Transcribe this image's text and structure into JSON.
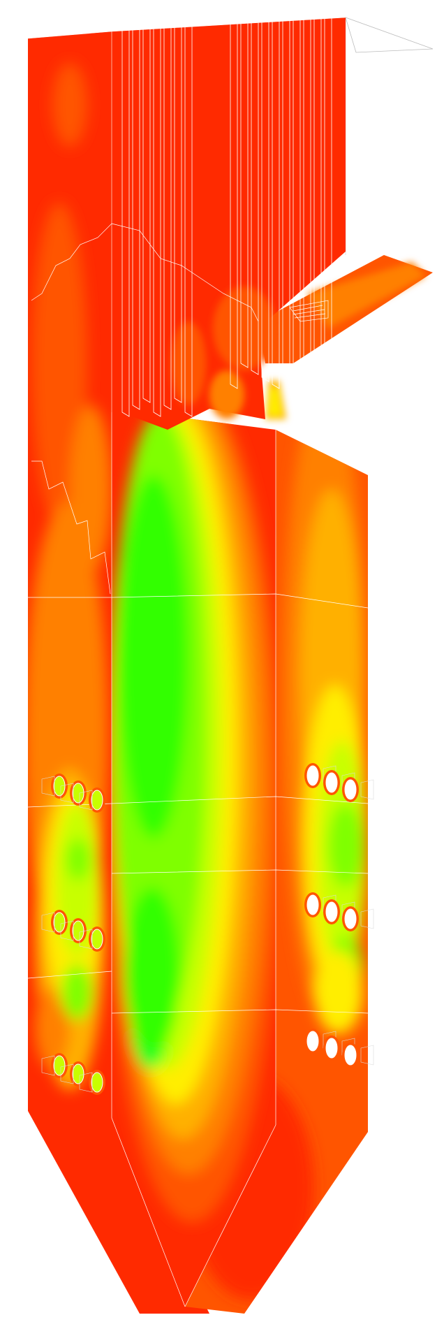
{
  "figure": {
    "subject": "boiler-furnace-temperature-contour",
    "legend": null,
    "labels": []
  },
  "colors": {
    "background": "#ffffff",
    "hot_red": "#ff1a00",
    "red": "#ff2a00",
    "orange_red": "#ff5500",
    "orange": "#ff8000",
    "yellow_orange": "#ffb000",
    "yellow": "#ffee00",
    "yellow_green": "#c8ff00",
    "light_green": "#7fff00",
    "green": "#33ff00",
    "bright_green": "#00ff33",
    "edge_lines": "#ffffff"
  },
  "burners": {
    "left_wall_rows": 3,
    "right_wall_rows": 3,
    "burners_per_row": 3
  }
}
